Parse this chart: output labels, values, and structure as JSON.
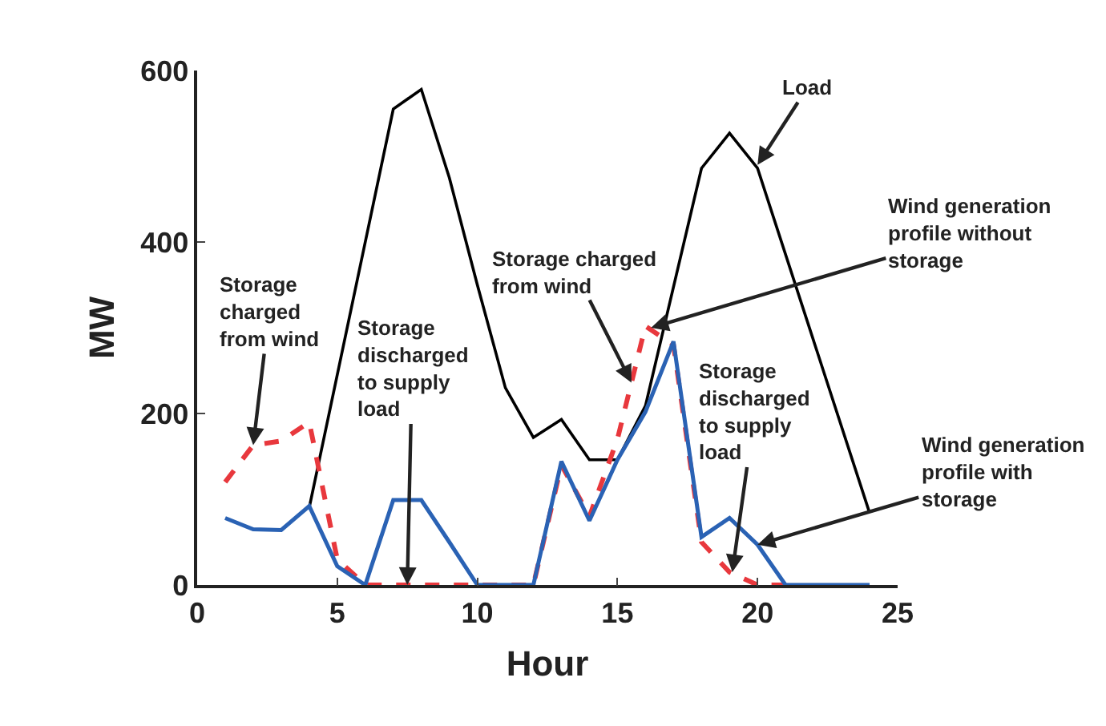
{
  "chart_data": {
    "type": "line",
    "xlabel": "Hour",
    "ylabel": "MW",
    "xlim": [
      0,
      25
    ],
    "ylim": [
      0,
      600
    ],
    "xticks": [
      0,
      5,
      10,
      15,
      20,
      25
    ],
    "yticks": [
      0,
      200,
      400,
      600
    ],
    "marker": "none",
    "series": [
      {
        "color": "#000000",
        "line_style": "solid",
        "x": [
          4,
          7,
          8,
          9,
          10,
          11,
          12,
          13,
          14,
          15,
          16,
          18,
          19,
          20,
          24
        ],
        "values": [
          90,
          555,
          578,
          475,
          350,
          230,
          172,
          193,
          146,
          146,
          209,
          486,
          527,
          486,
          84
        ]
      },
      {
        "color": "#e8383d",
        "line_style": "dashed",
        "x": [
          1,
          2,
          3,
          4,
          5,
          6,
          7,
          8,
          9,
          10,
          11,
          12,
          13,
          14,
          15,
          16,
          17,
          18,
          19,
          20,
          21
        ],
        "values": [
          120,
          163,
          168,
          190,
          30,
          0,
          0,
          0,
          0,
          0,
          0,
          0,
          140,
          80,
          170,
          302,
          280,
          50,
          15,
          0,
          0
        ]
      },
      {
        "color": "#2a62b4",
        "line_style": "solid",
        "x": [
          1,
          2,
          3,
          4,
          5,
          6,
          7,
          8,
          9,
          10,
          11,
          12,
          13,
          14,
          15,
          16,
          17,
          18,
          19,
          20,
          21,
          22,
          23,
          24
        ],
        "values": [
          78,
          65,
          64,
          92,
          22,
          0,
          99,
          99,
          50,
          0,
          0,
          0,
          144,
          75,
          146,
          202,
          284,
          56,
          78,
          47,
          0,
          0,
          0,
          0
        ]
      }
    ],
    "annotations": [
      {
        "text": "Load",
        "x": 20,
        "y": 490
      },
      {
        "text": "Wind generation profile without storage",
        "x": 16.2,
        "y": 300
      },
      {
        "text": "Storage charged from wind",
        "x": 2,
        "y": 163
      },
      {
        "text": "Storage discharged to supply load",
        "x": 7.5,
        "y": 0
      },
      {
        "text": "Storage charged from wind",
        "x": 15.5,
        "y": 236
      },
      {
        "text": "Storage discharged to supply load",
        "x": 19.1,
        "y": 15
      },
      {
        "text": "Wind generation profile with storage",
        "x": 20,
        "y": 47
      }
    ]
  }
}
